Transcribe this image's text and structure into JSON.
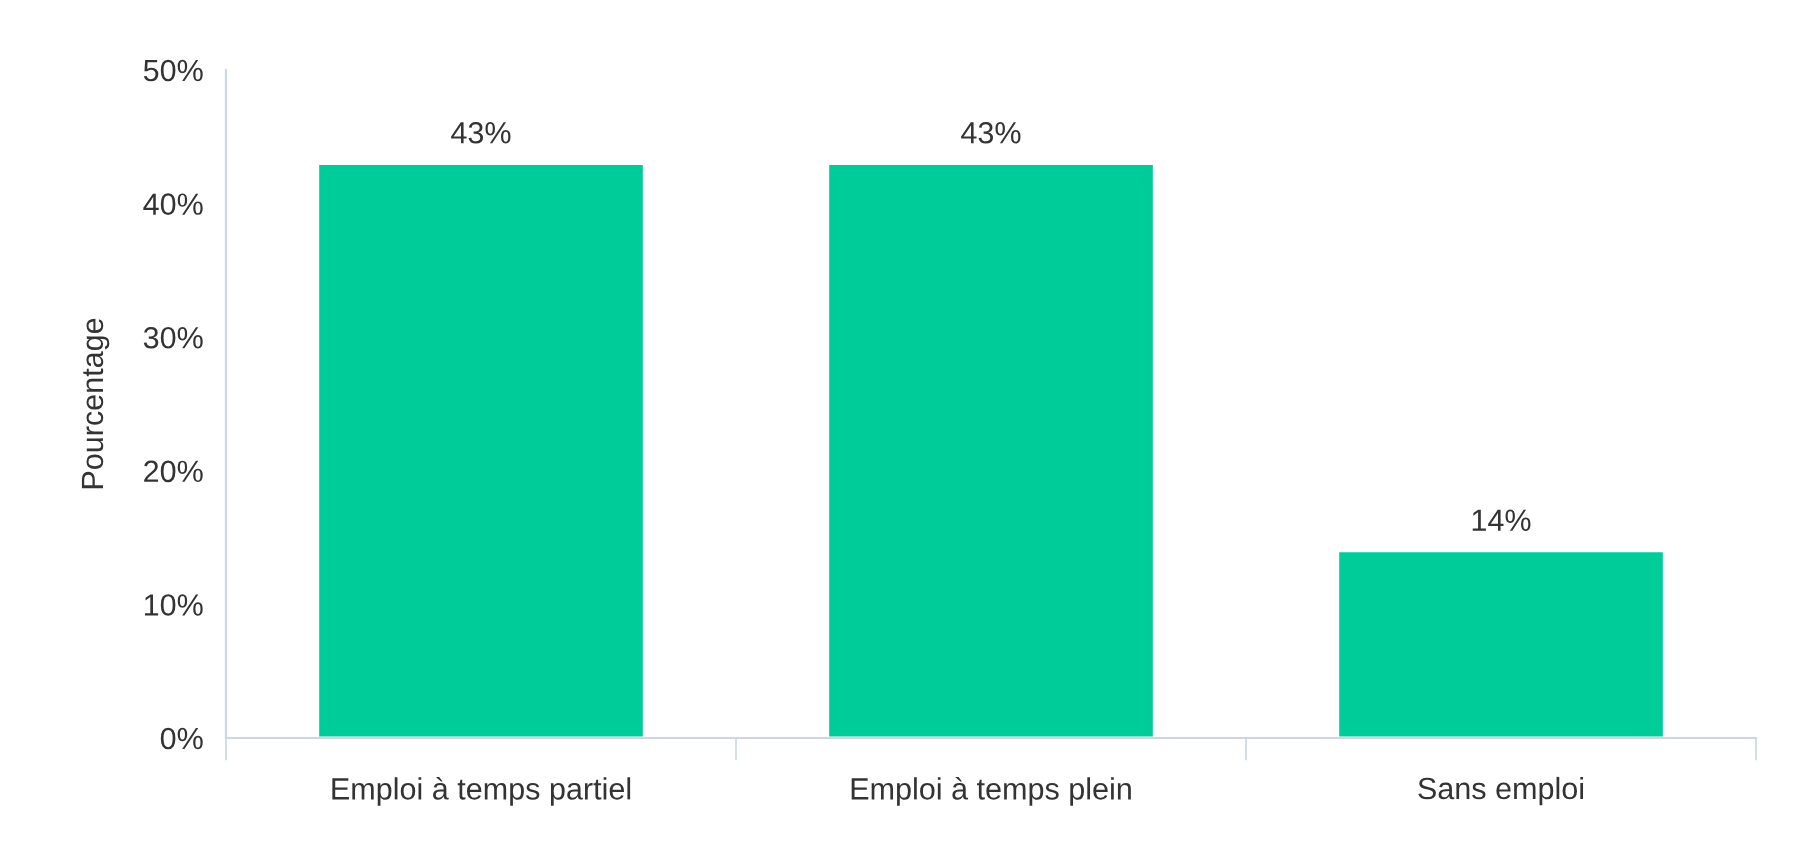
{
  "chart_data": {
    "type": "bar",
    "ylabel": "Pourcentage",
    "categories": [
      "Emploi à temps partiel",
      "Emploi à temps plein",
      "Sans emploi"
    ],
    "values": [
      43,
      43,
      14
    ],
    "value_labels": [
      "43%",
      "43%",
      "14%"
    ],
    "color": "#00cc99",
    "ylim": [
      0,
      50
    ],
    "yticks": [
      {
        "value": 0,
        "label": "0%"
      },
      {
        "value": 10,
        "label": "10%"
      },
      {
        "value": 20,
        "label": "20%"
      },
      {
        "value": 30,
        "label": "30%"
      },
      {
        "value": 40,
        "label": "40%"
      },
      {
        "value": 50,
        "label": "50%"
      }
    ],
    "grid": false,
    "legend": false
  }
}
